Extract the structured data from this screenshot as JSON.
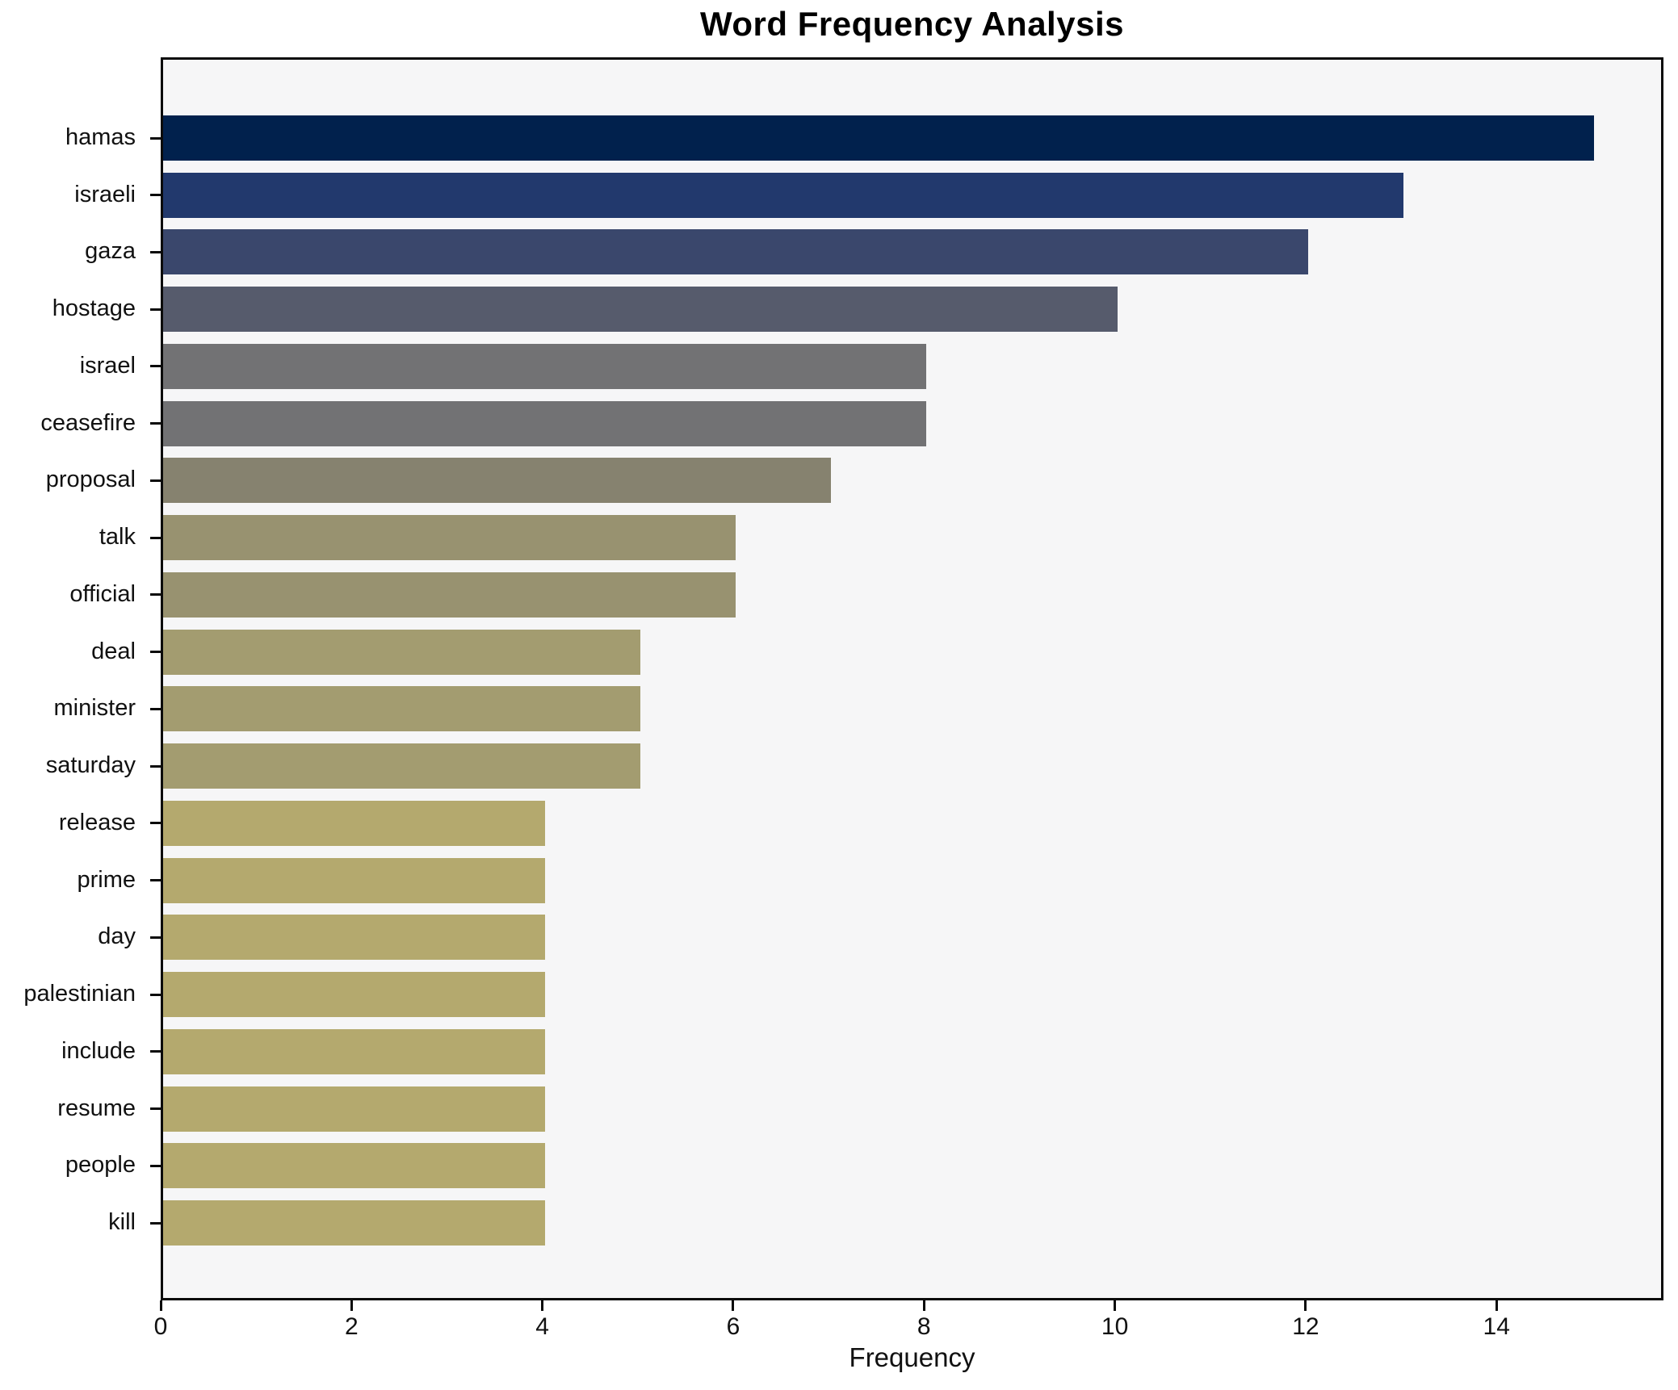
{
  "chart_data": {
    "type": "bar",
    "orientation": "horizontal",
    "title": "Word Frequency Analysis",
    "xlabel": "Frequency",
    "ylabel": "",
    "categories": [
      "hamas",
      "israeli",
      "gaza",
      "hostage",
      "israel",
      "ceasefire",
      "proposal",
      "talk",
      "official",
      "deal",
      "minister",
      "saturday",
      "release",
      "prime",
      "day",
      "palestinian",
      "include",
      "resume",
      "people",
      "kill"
    ],
    "values": [
      15,
      13,
      12,
      10,
      8,
      8,
      7,
      6,
      6,
      5,
      5,
      5,
      4,
      4,
      4,
      4,
      4,
      4,
      4,
      4
    ],
    "bar_colors": [
      "#01214d",
      "#22396d",
      "#3a476c",
      "#565b6c",
      "#727274",
      "#727274",
      "#86826f",
      "#989270",
      "#989270",
      "#a39c70",
      "#a39c70",
      "#a39c70",
      "#b4a96e",
      "#b4a96e",
      "#b4a96e",
      "#b4a96e",
      "#b4a96e",
      "#b4a96e",
      "#b4a96e",
      "#b4a96e"
    ],
    "xlim": [
      0,
      15.75
    ],
    "xticks": [
      0,
      2,
      4,
      6,
      8,
      10,
      12,
      14
    ],
    "grid": false,
    "legend": "none",
    "plot_bg": "#f6f6f7",
    "figure_bg": "#ffffff",
    "spine_color": "#0a0a0a",
    "bar_height_frac": 0.8
  }
}
